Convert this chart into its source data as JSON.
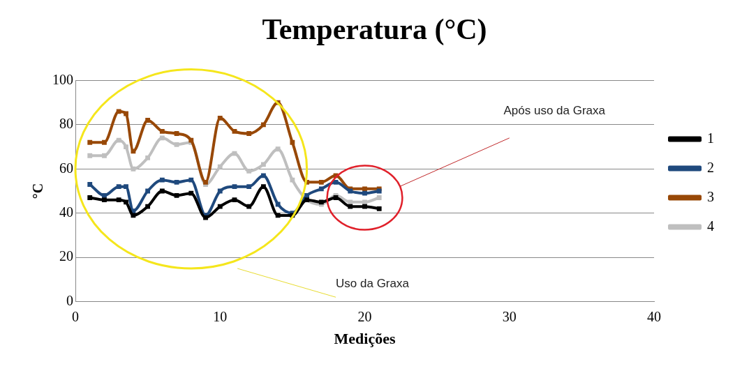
{
  "chart_data": {
    "type": "line",
    "title": "Temperatura (°C)",
    "xlabel": "Medições",
    "ylabel": "°C",
    "x": [
      1,
      2,
      3,
      3.5,
      4,
      5,
      6,
      7,
      8,
      9,
      10,
      11,
      12,
      13,
      14,
      15,
      16,
      17,
      18,
      19,
      20,
      21
    ],
    "series": [
      {
        "name": "1",
        "color": "#000000",
        "values": [
          47,
          46,
          46,
          45,
          39,
          43,
          50,
          48,
          49,
          38,
          43,
          46,
          43,
          52,
          39,
          39,
          46,
          45,
          47,
          43,
          43,
          42
        ]
      },
      {
        "name": "2",
        "color": "#1f497d",
        "values": [
          53,
          48,
          52,
          52,
          41,
          50,
          55,
          54,
          55,
          39,
          50,
          52,
          52,
          57,
          44,
          40,
          48,
          51,
          54,
          50,
          49,
          50
        ]
      },
      {
        "name": "3",
        "color": "#984807",
        "values": [
          72,
          72,
          86,
          85,
          68,
          82,
          77,
          76,
          73,
          54,
          83,
          77,
          76,
          80,
          90,
          72,
          54,
          54,
          57,
          51,
          51,
          51
        ]
      },
      {
        "name": "4",
        "color": "#bfbfbf",
        "values": [
          66,
          66,
          73,
          70,
          60,
          65,
          74,
          71,
          72,
          53,
          61,
          67,
          59,
          62,
          69,
          55,
          46,
          44,
          48,
          45,
          45,
          47
        ]
      }
    ],
    "xlim": [
      0,
      40
    ],
    "xticks": [
      0,
      10,
      20,
      30,
      40
    ],
    "ylim": [
      0,
      100
    ],
    "yticks": [
      0,
      20,
      40,
      60,
      80,
      100
    ],
    "grid": "y",
    "legend": "right",
    "marker": "square",
    "line_style": "solid",
    "annotations": [
      "Após uso da Graxa",
      "Uso da Graxa"
    ]
  }
}
